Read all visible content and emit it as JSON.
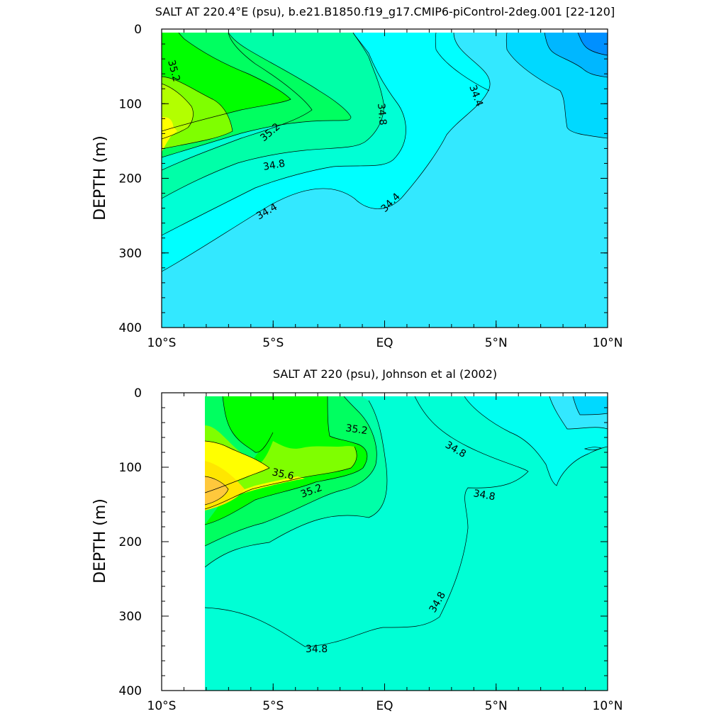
{
  "chart_data": [
    {
      "type": "contour",
      "title": "SALT AT 220.4°E (psu), b.e21.B1850.f19_g17.CMIP6-piControl-2deg.001 [22-120]",
      "ylabel": "DEPTH (m)",
      "xlabel": "",
      "xlim": [
        -10,
        10
      ],
      "ylim": [
        400,
        0
      ],
      "y_inverted": true,
      "x_tick_values": [
        -10,
        -5,
        0,
        5,
        10
      ],
      "x_tick_labels": [
        "10°S",
        "5°S",
        "EQ",
        "5°N",
        "10°N"
      ],
      "y_tick_values": [
        0,
        100,
        200,
        300,
        400
      ],
      "y_tick_labels": [
        "0",
        "100",
        "200",
        "300",
        "400"
      ],
      "contour_levels": [
        34.0,
        34.2,
        34.4,
        34.6,
        34.8,
        35.0,
        35.2,
        35.4,
        35.6,
        35.8
      ],
      "data_extent_x": [
        -10,
        10
      ],
      "max_value_location": {
        "x": -10,
        "depth": 135,
        "value_approx": 35.6
      },
      "min_value_location": {
        "x": 9.5,
        "depth": 20,
        "value_approx": 34.0
      },
      "contour_labels": [
        {
          "text": "35.2",
          "x": -9.7,
          "depth": 40
        },
        {
          "text": "34.8",
          "x": -0.1,
          "depth": 95
        },
        {
          "text": "34.4",
          "x": 4.2,
          "depth": 90
        },
        {
          "text": "35.2",
          "x": -4.9,
          "depth": 135
        },
        {
          "text": "34.8",
          "x": -4.8,
          "depth": 175
        },
        {
          "text": "34.4",
          "x": -5.5,
          "depth": 240
        },
        {
          "text": "34.4",
          "x": 0.3,
          "depth": 230
        }
      ]
    },
    {
      "type": "contour",
      "title": "SALT AT 220 (psu), Johnson et al (2002)",
      "ylabel": "DEPTH (m)",
      "xlabel": "",
      "xlim": [
        -10,
        10
      ],
      "ylim": [
        400,
        0
      ],
      "y_inverted": true,
      "x_tick_values": [
        -10,
        -5,
        0,
        5,
        10
      ],
      "x_tick_labels": [
        "10°S",
        "5°S",
        "EQ",
        "5°N",
        "10°N"
      ],
      "y_tick_values": [
        0,
        100,
        200,
        300,
        400
      ],
      "y_tick_labels": [
        "0",
        "100",
        "200",
        "300",
        "400"
      ],
      "contour_levels": [
        34.4,
        34.6,
        34.8,
        35.0,
        35.2,
        35.4,
        35.6,
        35.8
      ],
      "data_extent_x": [
        -8,
        10
      ],
      "max_value_location": {
        "x": -7.5,
        "depth": 125,
        "value_approx": 35.8
      },
      "contour_labels": [
        {
          "text": "35.2",
          "x": -1.2,
          "depth": 45
        },
        {
          "text": "34.8",
          "x": 3.2,
          "depth": 70
        },
        {
          "text": "35.6",
          "x": -4.6,
          "depth": 105
        },
        {
          "text": "35.2",
          "x": -3.2,
          "depth": 130
        },
        {
          "text": "34.8",
          "x": 4.6,
          "depth": 130
        },
        {
          "text": "34.8",
          "x": 2.4,
          "depth": 270
        },
        {
          "text": "34.8",
          "x": -3.0,
          "depth": 340
        }
      ]
    }
  ]
}
